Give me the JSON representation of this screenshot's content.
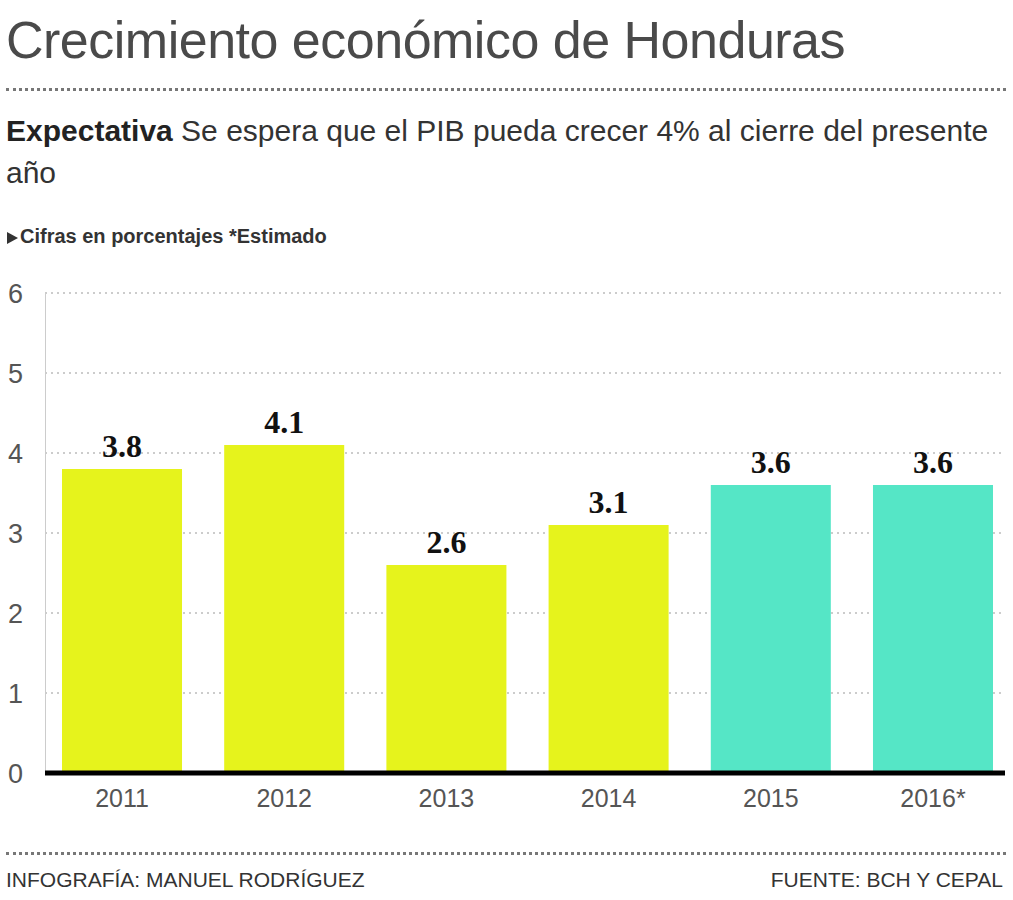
{
  "chart_data": {
    "type": "bar",
    "title": "Crecimiento económico de Honduras",
    "subtitle_lead": "Expectativa",
    "subtitle": "Se espera que el PIB pueda crecer 4% al cierre del presente año",
    "note": "Cifras en porcentajes",
    "footnote": "*Estimado",
    "credit": "INFOGRAFÍA: MANUEL RODRÍGUEZ",
    "source": "FUENTE: BCH Y CEPAL",
    "categories": [
      "2011",
      "2012",
      "2013",
      "2014",
      "2015",
      "2016*"
    ],
    "values": [
      3.8,
      4.1,
      2.6,
      3.1,
      3.6,
      3.6
    ],
    "colors": [
      "#e6f31c",
      "#e6f31c",
      "#e6f31c",
      "#e6f31c",
      "#55e6c6",
      "#55e6c6"
    ],
    "ylim": [
      0,
      6
    ],
    "yticks": [
      0,
      1,
      2,
      3,
      4,
      5,
      6
    ],
    "grid": true,
    "data_labels": true
  }
}
